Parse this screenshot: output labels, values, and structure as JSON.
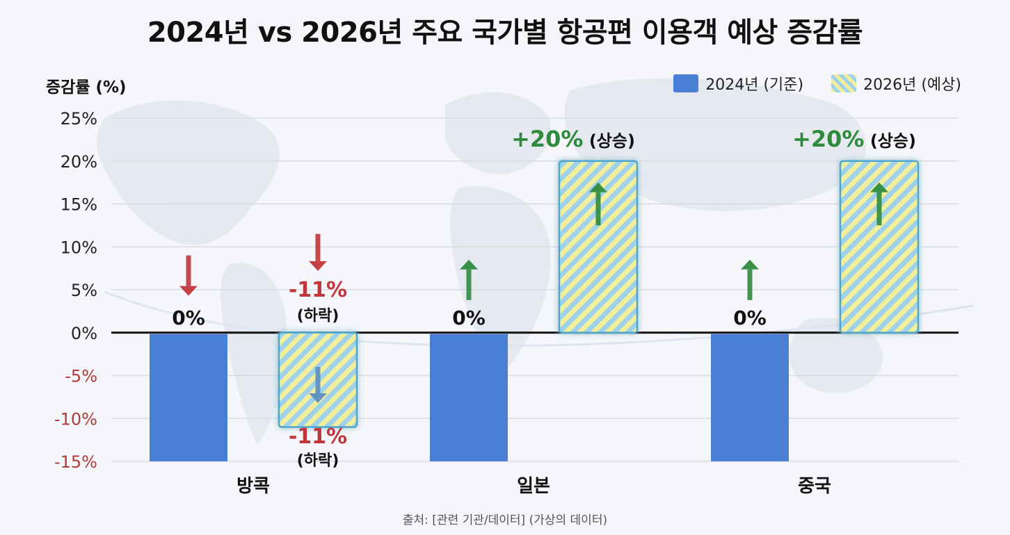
{
  "title": "2024년 vs 2026년 주요 국가별 항공편 이용객 예상 증감률",
  "ylabel": "증감률 (%)",
  "legend": {
    "series_2024": "2024년 (기준)",
    "series_2026": "2026년 (예상)"
  },
  "source": "출처: [관련 기관/데이터] (가상의 데이터)",
  "colors": {
    "bar_2024": "#4a7fd6",
    "hatch_yellow": "#f3ee9a",
    "hatch_blue": "#9fd2ea",
    "up": "#2e8b3e",
    "down": "#c0363a"
  },
  "chart_data": {
    "type": "bar",
    "title": "2024년 vs 2026년 주요 국가별 항공편 이용객 예상 증감률",
    "ylabel": "증감률 (%)",
    "xlabel": "",
    "ylim": [
      -15,
      25
    ],
    "yticks": [
      25,
      20,
      15,
      10,
      5,
      0,
      -5,
      -10,
      -15
    ],
    "ytick_labels": [
      "25%",
      "20%",
      "15%",
      "10%",
      "5%",
      "0%",
      "-5%",
      "-10%",
      "-15%"
    ],
    "grid": true,
    "legend_position": "top-right",
    "categories": [
      "방콕",
      "일본",
      "중국"
    ],
    "series": [
      {
        "name": "2024년 (기준)",
        "values": [
          0,
          0,
          0
        ],
        "drawn_bar_values": [
          -15,
          -15,
          -15
        ],
        "labels": [
          "0%",
          "0%",
          "0%"
        ]
      },
      {
        "name": "2026년 (예상)",
        "values": [
          -11,
          20,
          20
        ],
        "labels": [
          "-11%",
          "+20%",
          "+20%"
        ],
        "label_notes": [
          "(하락)",
          "(상승)",
          "(상승)"
        ]
      }
    ],
    "annotations": [
      {
        "category": "방콕",
        "text": "-11%",
        "note": "(하락)",
        "position": "below-bar"
      }
    ]
  }
}
